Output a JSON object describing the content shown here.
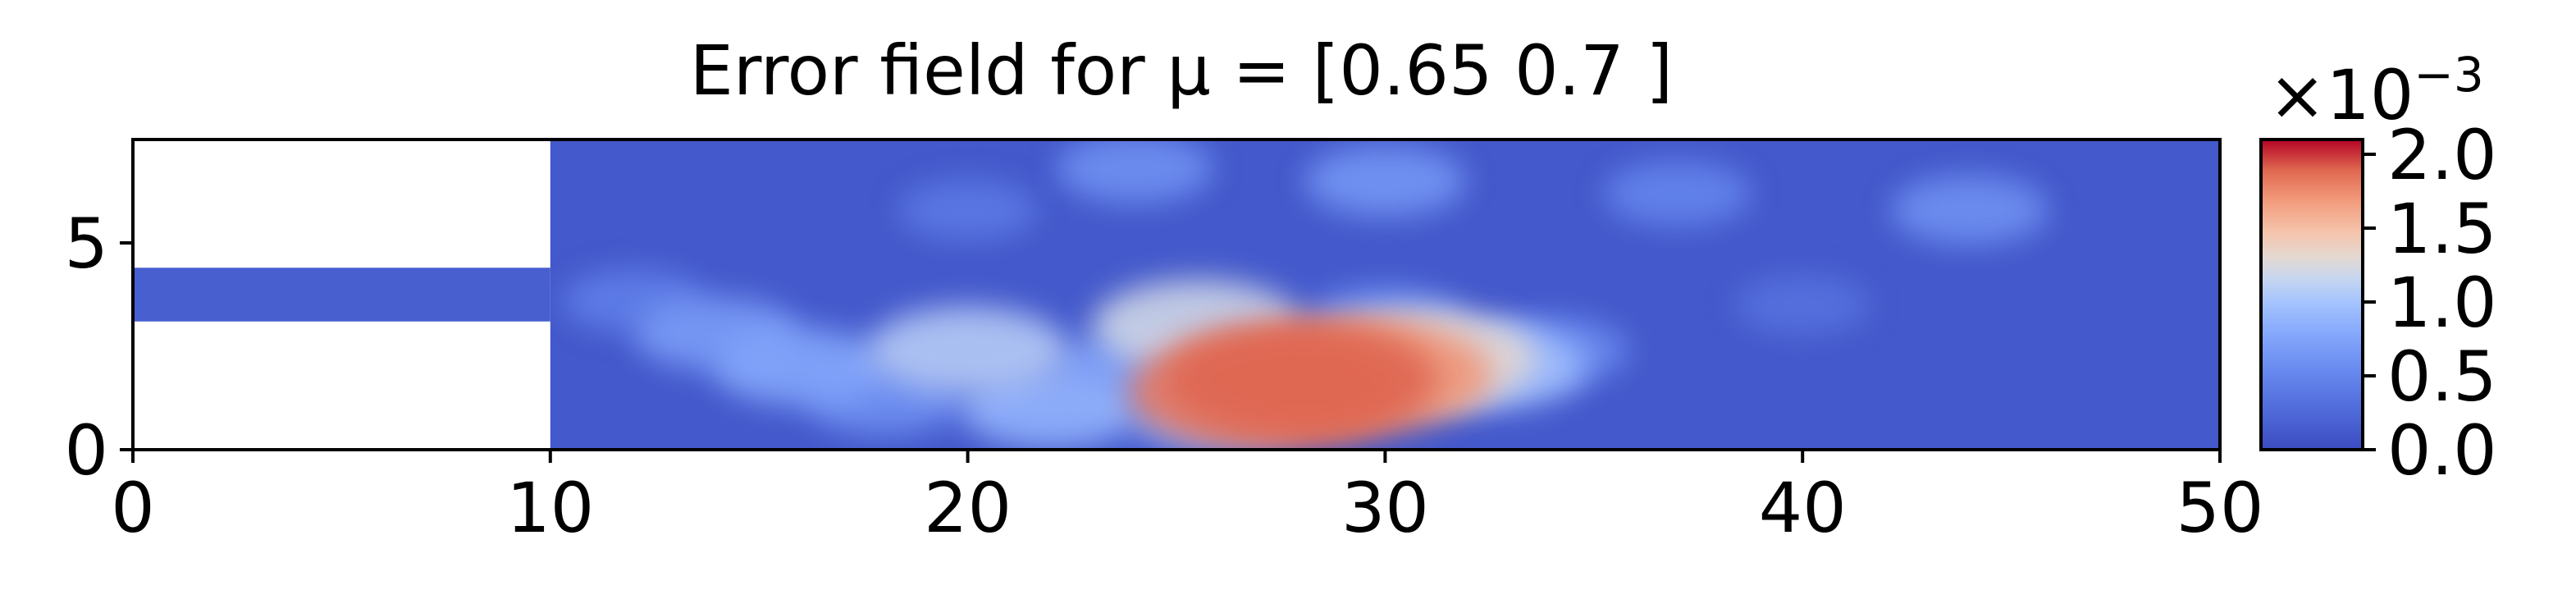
{
  "chart_data": {
    "type": "heatmap",
    "title": "Error field for μ = [0.65 0.7 ]",
    "xlabel": "",
    "ylabel": "",
    "xlim": [
      0,
      50
    ],
    "ylim": [
      0,
      7.5
    ],
    "xticks": [
      0,
      10,
      20,
      30,
      40,
      50
    ],
    "yticks": [
      0,
      5
    ],
    "colormap": "coolwarm",
    "colorbar": {
      "min": 0.0,
      "max": 2.1,
      "ticks": [
        "0.0",
        "0.5",
        "1.0",
        "1.5",
        "2.0"
      ],
      "tick_values": [
        0.0,
        0.5,
        1.0,
        1.5,
        2.0
      ],
      "scale_prefix": "×10",
      "scale_exponent": "−3"
    },
    "geometry": {
      "inlet_channel": {
        "x": [
          0,
          10
        ],
        "y": [
          3.1,
          4.4
        ]
      },
      "main_chamber": {
        "x": [
          10,
          50
        ],
        "y": [
          0,
          7.5
        ]
      }
    },
    "hotspots": [
      {
        "x": 28.0,
        "y": 1.7,
        "value": 1.9
      },
      {
        "x": 29.5,
        "y": 1.8,
        "value": 1.7
      },
      {
        "x": 27.0,
        "y": 1.4,
        "value": 1.8
      },
      {
        "x": 31.0,
        "y": 2.2,
        "value": 1.3
      },
      {
        "x": 25.5,
        "y": 3.0,
        "value": 1.2
      },
      {
        "x": 20.0,
        "y": 2.4,
        "value": 1.1
      },
      {
        "x": 22.0,
        "y": 1.0,
        "value": 0.9
      },
      {
        "x": 16.0,
        "y": 2.0,
        "value": 0.8
      },
      {
        "x": 14.0,
        "y": 2.8,
        "value": 0.7
      },
      {
        "x": 32.5,
        "y": 2.0,
        "value": 1.0
      },
      {
        "x": 24.0,
        "y": 2.0,
        "value": 0.7
      },
      {
        "x": 18.0,
        "y": 1.2,
        "value": 0.6
      },
      {
        "x": 26.0,
        "y": 0.8,
        "value": 0.8
      },
      {
        "x": 30.0,
        "y": 3.0,
        "value": 0.7
      },
      {
        "x": 34.0,
        "y": 2.4,
        "value": 0.55
      },
      {
        "x": 12.0,
        "y": 3.6,
        "value": 0.45
      },
      {
        "x": 44.0,
        "y": 5.8,
        "value": 0.6
      },
      {
        "x": 30.0,
        "y": 6.5,
        "value": 0.65
      },
      {
        "x": 24.0,
        "y": 6.8,
        "value": 0.6
      },
      {
        "x": 37.0,
        "y": 6.2,
        "value": 0.5
      },
      {
        "x": 20.0,
        "y": 5.8,
        "value": 0.4
      },
      {
        "x": 40.0,
        "y": 3.5,
        "value": 0.35
      }
    ],
    "base_value": 0.12,
    "inlet_value": 0.18
  }
}
